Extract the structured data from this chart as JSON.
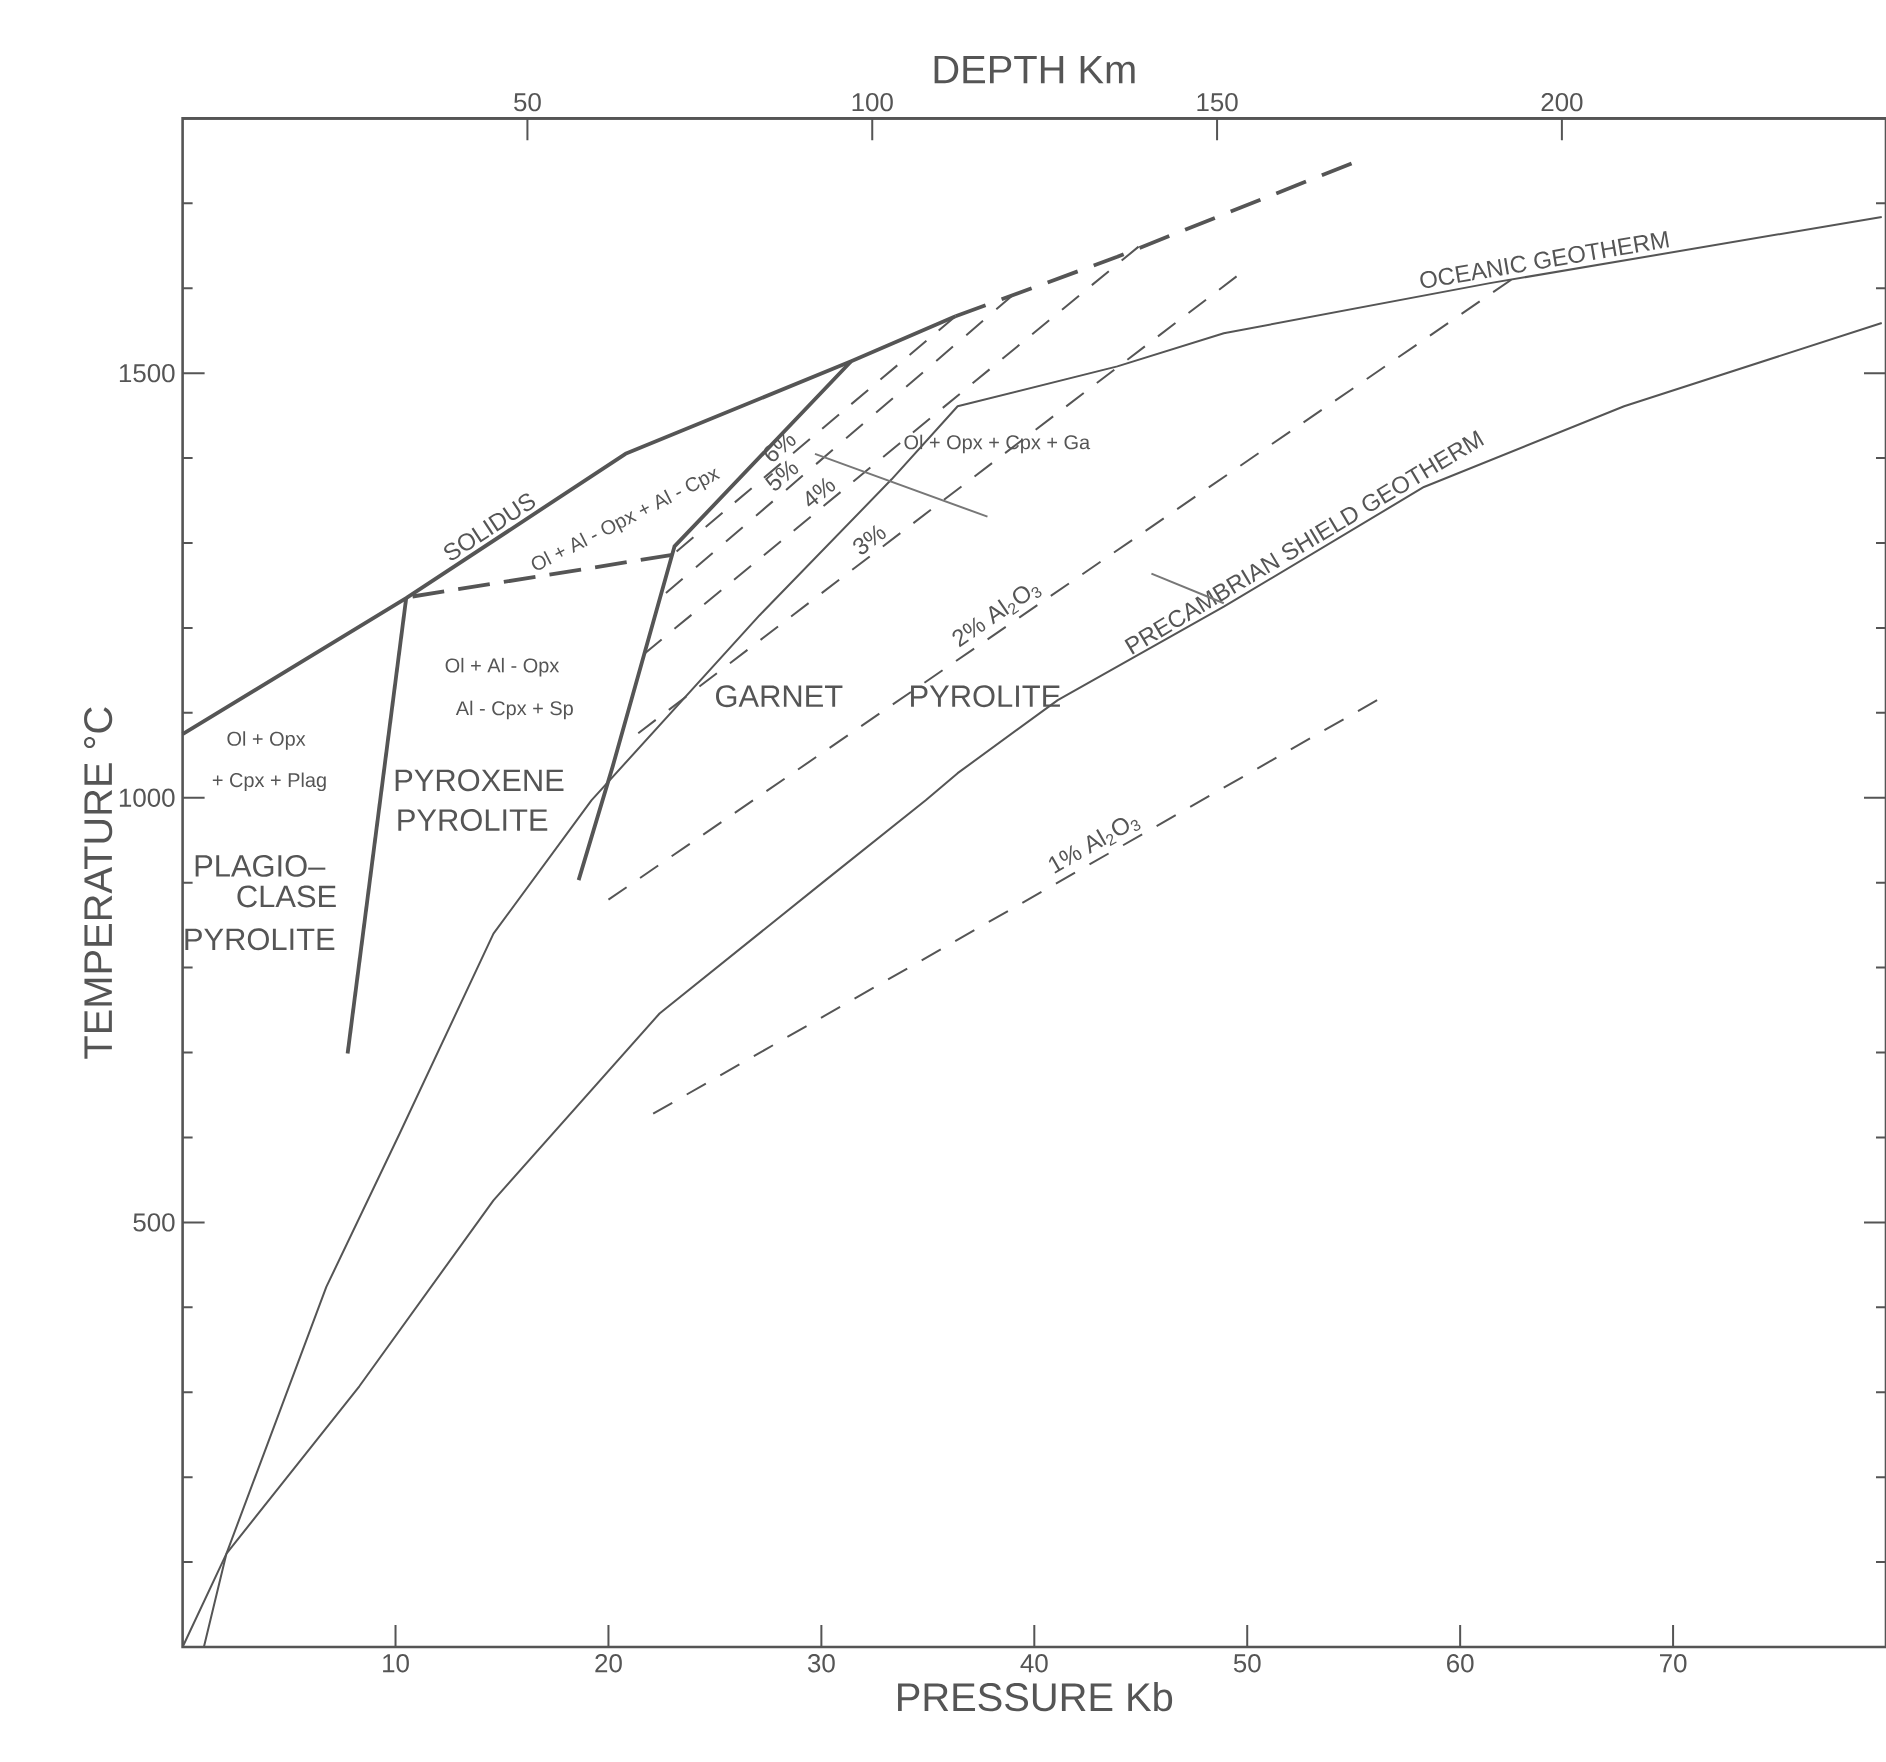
{
  "chart_data": {
    "type": "line",
    "xlabel": "PRESSURE   Kb",
    "ylabel": "TEMPERATURE   °C",
    "x2label": "DEPTH   Km",
    "xlim": [
      0,
      80
    ],
    "ylim": [
      0,
      1800
    ],
    "x2lim": [
      0,
      247
    ],
    "xticks": [
      10,
      20,
      30,
      40,
      50,
      60,
      70
    ],
    "x2ticks": [
      50,
      100,
      150,
      200
    ],
    "yticks": [
      {
        "value": 100,
        "label": null
      },
      {
        "value": 200,
        "label": null
      },
      {
        "value": 300,
        "label": null
      },
      {
        "value": 400,
        "label": null
      },
      500,
      {
        "value": 600,
        "label": null
      },
      {
        "value": 700,
        "label": null
      },
      {
        "value": 800,
        "label": null
      },
      {
        "value": 900,
        "label": null
      },
      1000,
      {
        "value": 1100,
        "label": null
      },
      {
        "value": 1200,
        "label": null
      },
      {
        "value": 1300,
        "label": null
      },
      {
        "value": 1400,
        "label": null
      },
      1500,
      {
        "value": 1600,
        "label": null
      },
      {
        "value": 1700,
        "label": null
      }
    ],
    "legend": false,
    "grid": false,
    "marker": "none",
    "series": [
      {
        "name": "SOLIDUS",
        "color": "#555555",
        "line_style": "solid",
        "x": [
          0,
          10.5,
          20.8,
          31.4,
          36.3
        ],
        "values": [
          1075,
          1235,
          1405,
          1514,
          1567
        ]
      },
      {
        "color": "#555555",
        "line_style": "dashed",
        "x": [
          36.3,
          43.9,
          54.9
        ],
        "values": [
          1567,
          1637,
          1747
        ]
      },
      {
        "color": "#555555",
        "line_style": "solid",
        "x": [
          7.75,
          10.5
        ],
        "values": [
          699,
          1235
        ]
      },
      {
        "color": "#555555",
        "line_style": "solid",
        "x": [
          18.6,
          20.2,
          23.1,
          31.4
        ],
        "values": [
          903,
          1037,
          1296,
          1514
        ]
      },
      {
        "color": "#555555",
        "line_style": "dashed",
        "x": [
          10.8,
          23.0
        ],
        "values": [
          1237,
          1286
        ]
      },
      {
        "name": "OCEANIC GEOTHERM",
        "color": "#555555",
        "line_style": "solid",
        "x": [
          0,
          2.06,
          6.75,
          10.2,
          14.6,
          19.2,
          27.1,
          33.3,
          36.4,
          43.9,
          48.9,
          61.4,
          79.8
        ],
        "values": [
          0,
          110,
          424,
          605,
          840,
          997,
          1215,
          1375,
          1461,
          1508,
          1547,
          1606,
          1684
        ]
      },
      {
        "name": "PRECAMBRIAN SHIELD GEOTHERM",
        "color": "#555555",
        "line_style": "solid",
        "x": [
          1.0,
          2.06,
          8.3,
          14.6,
          22.4,
          30.2,
          34.9,
          36.4,
          41.1,
          48.9,
          58.3,
          67.7,
          79.8
        ],
        "values": [
          0,
          110,
          307,
          526,
          746,
          903,
          997,
          1029,
          1115,
          1225,
          1366,
          1461,
          1559
        ]
      },
      {
        "name": "1% Al$_{2}$O$_{3}$",
        "color": "#555555",
        "line_style": "dashed",
        "x": [
          22.1,
          56.1
        ],
        "values": [
          628,
          1115
        ]
      },
      {
        "name": "2% Al$_{2}$O$_{3}$",
        "color": "#555555",
        "line_style": "dashed",
        "x": [
          20.0,
          62.4
        ],
        "values": [
          880,
          1610
        ]
      },
      {
        "name": "3%",
        "color": "#555555",
        "line_style": "dashed",
        "x": [
          21.4,
          49.5
        ],
        "values": [
          1076,
          1614
        ]
      },
      {
        "name": "4%",
        "color": "#555555",
        "line_style": "dashed",
        "x": [
          21.7,
          44.9
        ],
        "values": [
          1170,
          1649
        ]
      },
      {
        "name": "5%",
        "color": "#555555",
        "line_style": "dashed",
        "x": [
          22.7,
          39.0
        ],
        "values": [
          1241,
          1592
        ]
      },
      {
        "name": "6%",
        "color": "#555555",
        "line_style": "dashed",
        "x": [
          23.2,
          36.3
        ],
        "values": [
          1290,
          1567
        ]
      },
      {
        "color": "#777777",
        "line_style": "solid",
        "x": [
          29.7,
          37.8
        ],
        "values": [
          1405,
          1331
        ]
      },
      {
        "color": "#777777",
        "line_style": "solid",
        "x": [
          45.5,
          48.9
        ],
        "values": [
          1264,
          1229
        ]
      }
    ],
    "annotations": [
      "Ol + Al - Opx + Al - Cpx",
      "Ol + Opx   +   Cpx + Ga",
      "Ol + Al - Opx",
      "Al - Cpx + Sp",
      "Ol + Opx",
      "+ Cpx + Plag",
      "PYROXENE",
      "PYROLITE",
      "PLAGIO–",
      "CLASE",
      "PYROLITE",
      "GARNET",
      "PYROLITE"
    ]
  }
}
